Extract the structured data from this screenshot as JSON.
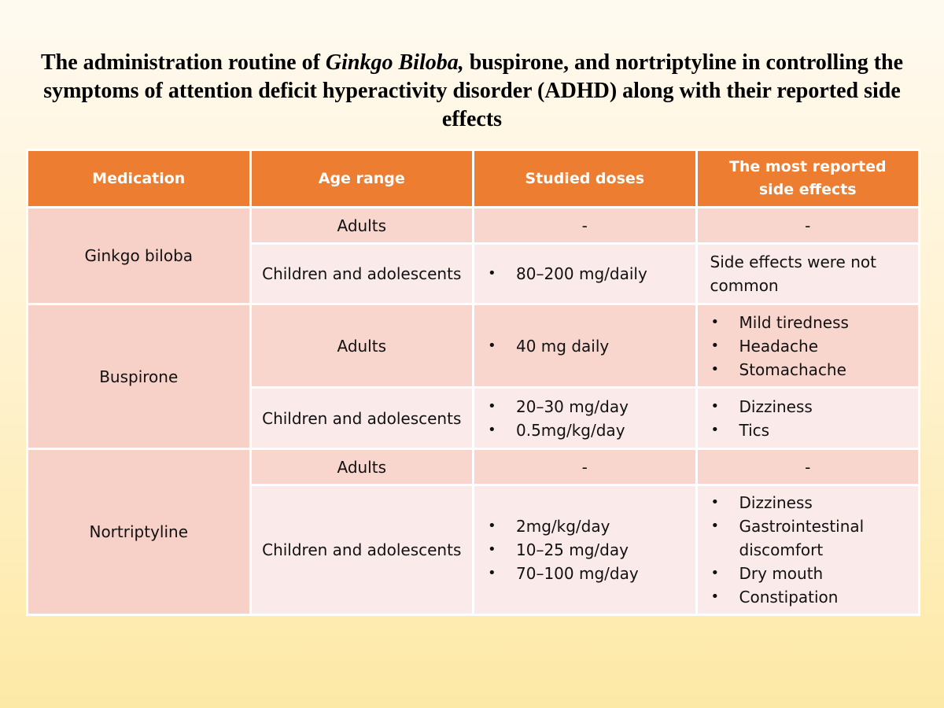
{
  "title": {
    "part1": "The administration routine of ",
    "italic": "Ginkgo Biloba,",
    "part2": " buspirone, and nortriptyline in controlling the symptoms of attention deficit hyperactivity disorder (ADHD) along with their reported side effects"
  },
  "table": {
    "headers": [
      "Medication",
      "Age range",
      "Studied doses",
      "The most reported side effects"
    ],
    "medications": [
      {
        "name": "Ginkgo biloba",
        "rows": [
          {
            "age": "Adults",
            "doses_text": "-",
            "side_text": "-"
          },
          {
            "age": "Children and adolescents",
            "doses": [
              "80–200 mg/daily"
            ],
            "side_text": "Side effects were not common"
          }
        ]
      },
      {
        "name": "Buspirone",
        "rows": [
          {
            "age": "Adults",
            "doses": [
              "40 mg daily"
            ],
            "side": [
              "Mild tiredness",
              "Headache",
              "Stomachache"
            ]
          },
          {
            "age": "Children and adolescents",
            "doses": [
              "20–30 mg/day",
              "0.5mg/kg/day"
            ],
            "side": [
              "Dizziness",
              "Tics"
            ]
          }
        ]
      },
      {
        "name": "Nortriptyline",
        "rows": [
          {
            "age": "Adults",
            "doses_text": "-",
            "side_text": "-"
          },
          {
            "age": "Children and adolescents",
            "doses": [
              "2mg/kg/day",
              "10–25 mg/day",
              "70–100 mg/day"
            ],
            "side": [
              "Dizziness",
              "Gastrointestinal discomfort",
              "Dry mouth",
              "Constipation"
            ]
          }
        ]
      }
    ]
  },
  "colors": {
    "header_bg": "#ed7d31",
    "medication_bg": "#f7d1c8",
    "row_dark": "#f8d6ce",
    "row_light": "#fbeaea"
  }
}
